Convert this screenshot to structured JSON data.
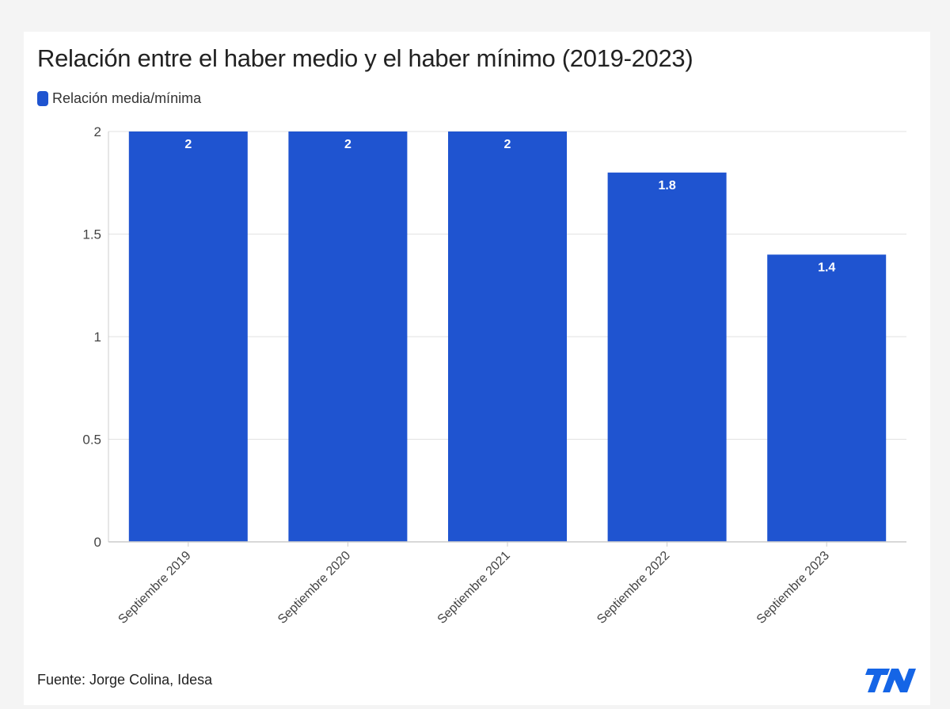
{
  "title": "Relación entre el haber medio y el haber mínimo (2019-2023)",
  "legend": {
    "label": "Relación media/mínima"
  },
  "source": "Fuente: Jorge Colina, Idesa",
  "logo": {
    "text": "TN",
    "icon": "tn-logo-icon"
  },
  "colors": {
    "bar": "#1f54d0",
    "grid": "#e2e2e2",
    "axis": "#cccccc",
    "tick_text": "#444444",
    "logo": "#1565e6"
  },
  "chart_data": {
    "type": "bar",
    "title": "Relación entre el haber medio y el haber mínimo (2019-2023)",
    "categories": [
      "Septiembre 2019",
      "Septiembre 2020",
      "Septiembre 2021",
      "Septiembre 2022",
      "Septiembre 2023"
    ],
    "series": [
      {
        "name": "Relación media/mínima",
        "values": [
          2,
          2,
          2,
          1.8,
          1.4
        ]
      }
    ],
    "data_labels": [
      "2",
      "2",
      "2",
      "1.8",
      "1.4"
    ],
    "yticks": [
      "0",
      "0.5",
      "1",
      "1.5",
      "2"
    ],
    "ylim": [
      0,
      2
    ],
    "xlabel": "",
    "ylabel": "",
    "grid": true,
    "legend_position": "top-left"
  }
}
